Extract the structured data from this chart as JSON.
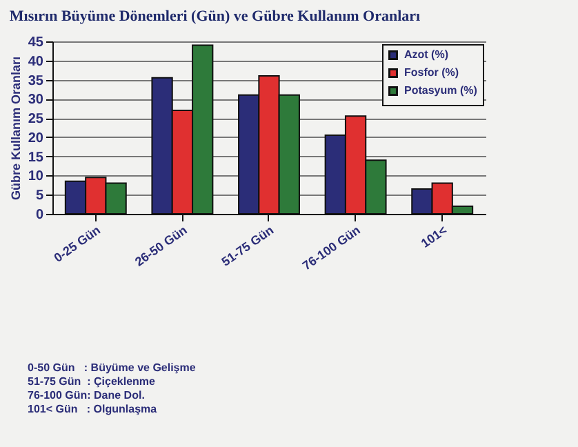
{
  "chart_data": {
    "type": "bar",
    "title": "Mısırın Büyüme Dönemleri (Gün) ve Gübre Kullanım Oranları",
    "ylabel": "Gübre Kullanım Oranları",
    "categories": [
      "0-25 Gün",
      "26-50 Gün",
      "51-75 Gün",
      "76-100 Gün",
      "101<"
    ],
    "series": [
      {
        "name": "Azot (%)",
        "color": "#2b2d78",
        "values": [
          8.5,
          35.5,
          31,
          20.5,
          6.5
        ]
      },
      {
        "name": "Fosfor (%)",
        "color": "#e03030",
        "values": [
          9.5,
          27,
          36,
          25.5,
          8
        ]
      },
      {
        "name": "Potasyum (%)",
        "color": "#2e7a3a",
        "values": [
          8,
          44,
          31,
          14,
          2
        ]
      }
    ],
    "ylim": [
      0,
      45
    ],
    "yticks": [
      0,
      5,
      10,
      15,
      20,
      25,
      30,
      35,
      40,
      45
    ],
    "grid": "y",
    "legend": "top right",
    "annotations": [
      "0-50 Gün   : Büyüme ve Gelişme",
      "51-75 Gün  : Çiçeklenme",
      "76-100 Gün: Dane Dol.",
      "101< Gün   : Olgunlaşma"
    ]
  }
}
